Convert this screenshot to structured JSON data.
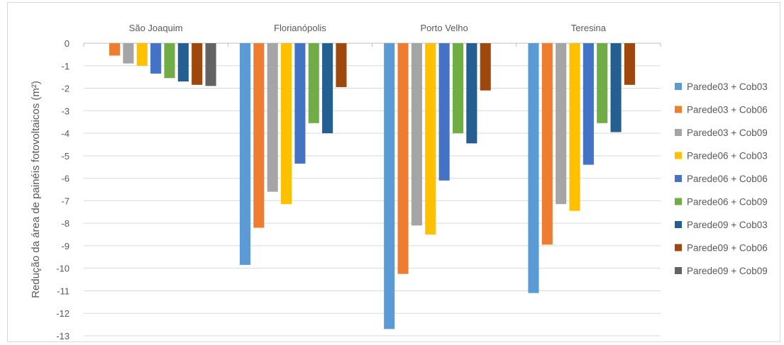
{
  "chart_data": {
    "type": "bar",
    "ylabel": "Redução da área de painéis fotovoltaicos (m²)",
    "ylim": [
      -13,
      0
    ],
    "yticks": [
      0,
      -1,
      -2,
      -3,
      -4,
      -5,
      -6,
      -7,
      -8,
      -9,
      -10,
      -11,
      -12,
      -13
    ],
    "categories": [
      "São Joaquim",
      "Florianópolis",
      "Porto Velho",
      "Teresina"
    ],
    "category_axis_position": "top",
    "grid": true,
    "legend_position": "right",
    "series": [
      {
        "name": "Parede03 + Cob03",
        "color": "#5b9bd5",
        "values": [
          null,
          -9.85,
          -12.7,
          -11.1
        ]
      },
      {
        "name": "Parede03 + Cob06",
        "color": "#ed7d31",
        "values": [
          -0.55,
          -8.2,
          -10.25,
          -8.95
        ]
      },
      {
        "name": "Parede03 + Cob09",
        "color": "#a5a5a5",
        "values": [
          -0.9,
          -6.6,
          -8.1,
          -7.15
        ]
      },
      {
        "name": "Parede06 + Cob03",
        "color": "#ffc000",
        "values": [
          -1.0,
          -7.15,
          -8.5,
          -7.45
        ]
      },
      {
        "name": "Parede06 + Cob06",
        "color": "#4472c4",
        "values": [
          -1.35,
          -5.35,
          -6.1,
          -5.4
        ]
      },
      {
        "name": "Parede06 + Cob09",
        "color": "#70ad47",
        "values": [
          -1.55,
          -3.55,
          -4.0,
          -3.55
        ]
      },
      {
        "name": "Parede09 + Cob03",
        "color": "#255e91",
        "values": [
          -1.7,
          -4.0,
          -4.45,
          -3.95
        ]
      },
      {
        "name": "Parede09 + Cob06",
        "color": "#9e480e",
        "values": [
          -1.85,
          -1.95,
          -2.1,
          -1.85
        ]
      },
      {
        "name": "Parede09 + Cob09",
        "color": "#636363",
        "values": [
          -1.9,
          null,
          null,
          null
        ]
      }
    ]
  }
}
